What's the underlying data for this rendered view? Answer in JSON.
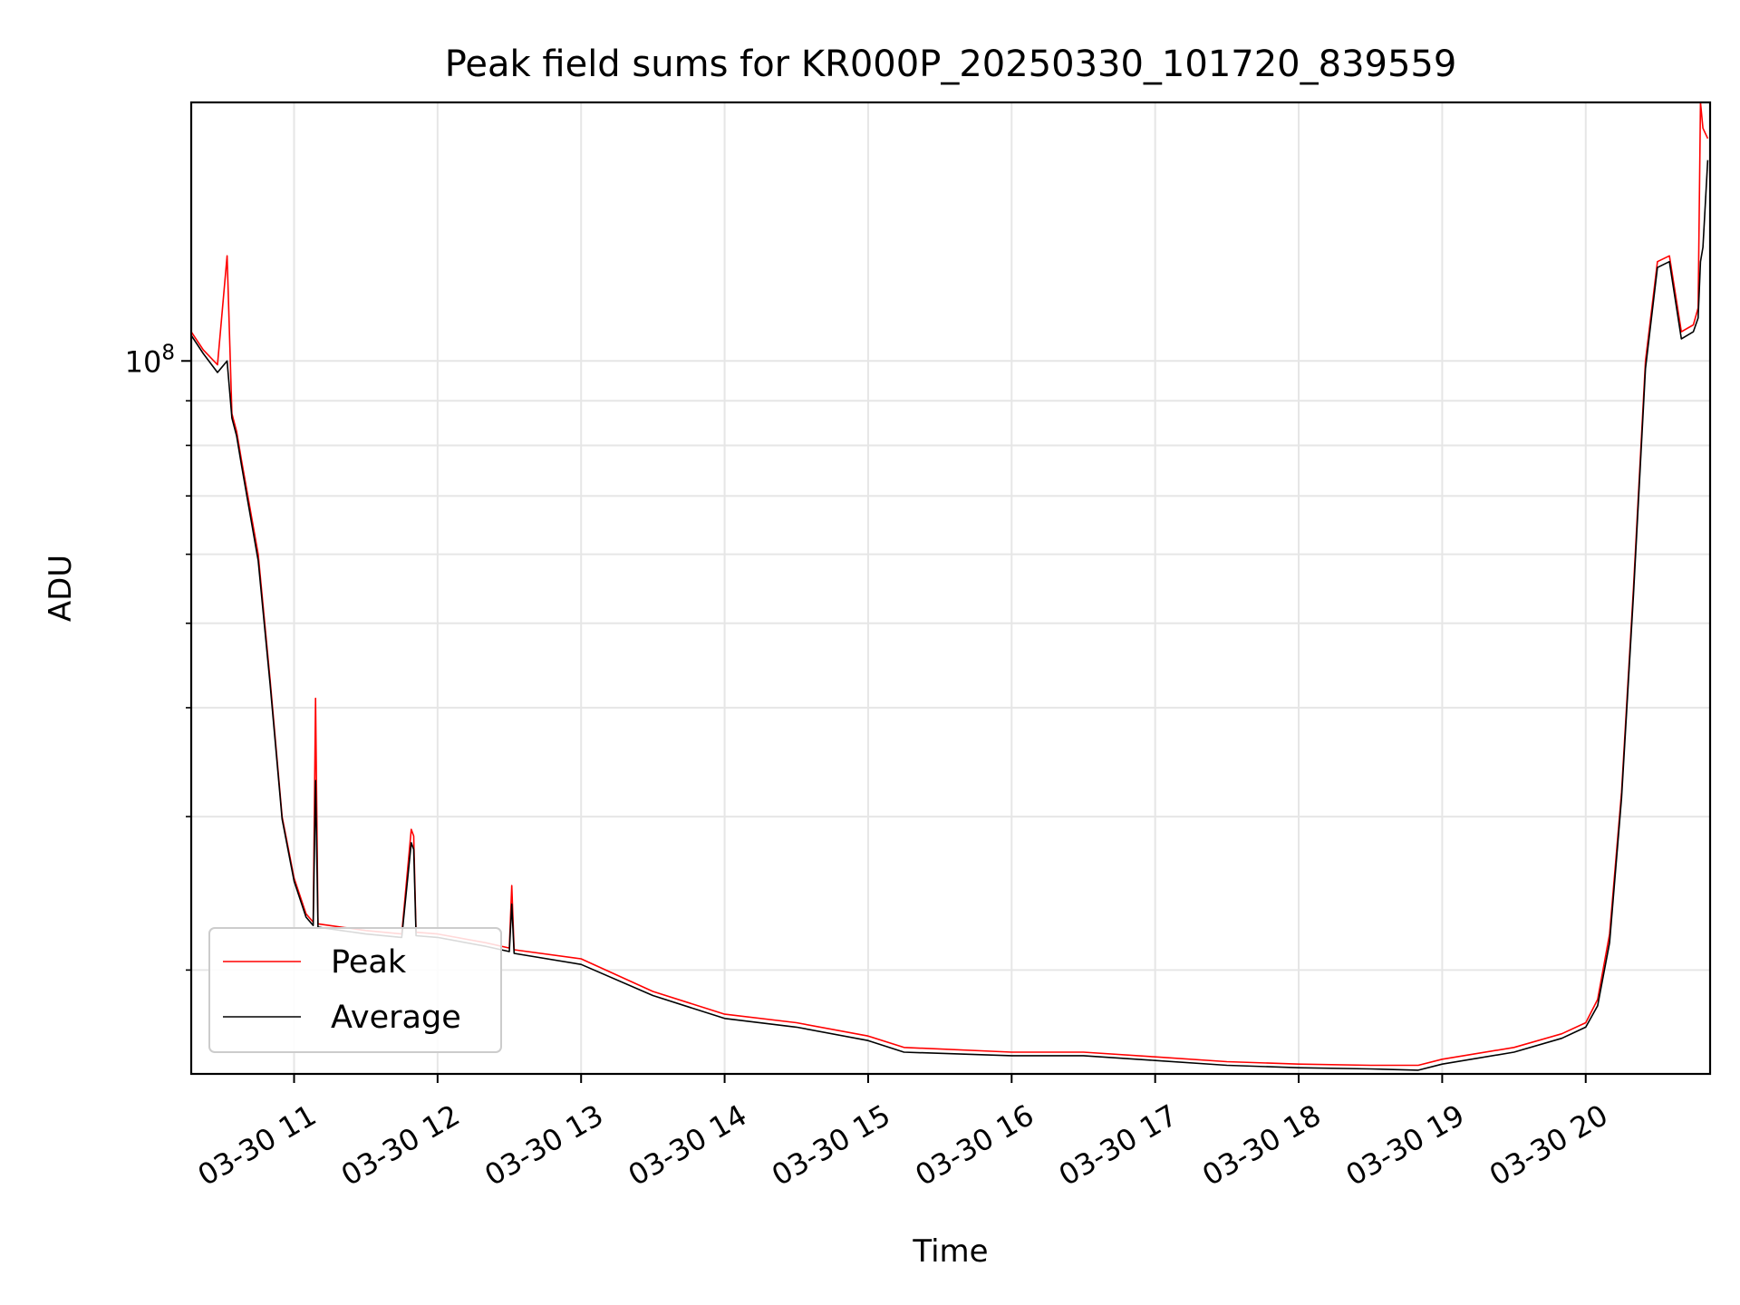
{
  "chart_data": {
    "type": "line",
    "title": "Peak field sums for KR000P_20250330_101720_839559",
    "xlabel": "Time",
    "ylabel": "ADU",
    "yscale": "log",
    "grid": true,
    "legend_position": "lower-left",
    "xlim": [
      "2025-03-30 10:17",
      "2025-03-30 20:52"
    ],
    "ylim": [
      15200000,
      198000000
    ],
    "x_ticks": [
      "03-30 11",
      "03-30 12",
      "03-30 13",
      "03-30 14",
      "03-30 15",
      "03-30 16",
      "03-30 17",
      "03-30 18",
      "03-30 19",
      "03-30 20"
    ],
    "y_tick_label": "10^8",
    "series": [
      {
        "name": "Peak",
        "color": "#ff0000",
        "x": [
          "2025-03-30 10:17",
          "2025-03-30 10:22",
          "2025-03-30 10:28",
          "2025-03-30 10:32",
          "2025-03-30 10:34",
          "2025-03-30 10:36",
          "2025-03-30 10:38",
          "2025-03-30 10:45",
          "2025-03-30 10:50",
          "2025-03-30 10:55",
          "2025-03-30 11:00",
          "2025-03-30 11:05",
          "2025-03-30 11:08",
          "2025-03-30 11:09",
          "2025-03-30 11:10",
          "2025-03-30 11:30",
          "2025-03-30 11:45",
          "2025-03-30 11:49",
          "2025-03-30 11:50",
          "2025-03-30 11:51",
          "2025-03-30 12:00",
          "2025-03-30 12:20",
          "2025-03-30 12:30",
          "2025-03-30 12:31",
          "2025-03-30 12:32",
          "2025-03-30 13:00",
          "2025-03-30 13:30",
          "2025-03-30 14:00",
          "2025-03-30 14:30",
          "2025-03-30 15:00",
          "2025-03-30 15:15",
          "2025-03-30 16:00",
          "2025-03-30 16:30",
          "2025-03-30 17:00",
          "2025-03-30 17:30",
          "2025-03-30 18:00",
          "2025-03-30 18:30",
          "2025-03-30 18:50",
          "2025-03-30 19:00",
          "2025-03-30 19:30",
          "2025-03-30 19:50",
          "2025-03-30 20:00",
          "2025-03-30 20:05",
          "2025-03-30 20:10",
          "2025-03-30 20:15",
          "2025-03-30 20:20",
          "2025-03-30 20:25",
          "2025-03-30 20:30",
          "2025-03-30 20:35",
          "2025-03-30 20:40",
          "2025-03-30 20:45",
          "2025-03-30 20:47",
          "2025-03-30 20:48",
          "2025-03-30 20:49",
          "2025-03-30 20:51"
        ],
        "y": [
          108000000,
          103000000,
          99000000,
          132000000,
          87000000,
          83000000,
          77000000,
          60000000,
          43000000,
          30000000,
          25500000,
          23200000,
          22700000,
          41000000,
          22600000,
          22200000,
          22000000,
          29000000,
          28500000,
          22100000,
          22000000,
          21500000,
          21200000,
          25000000,
          21100000,
          20600000,
          18900000,
          17800000,
          17400000,
          16800000,
          16300000,
          16100000,
          16100000,
          15900000,
          15700000,
          15600000,
          15550000,
          15550000,
          15800000,
          16300000,
          16900000,
          17400000,
          18500000,
          22000000,
          32000000,
          55000000,
          100000000,
          130000000,
          132000000,
          108000000,
          110000000,
          115000000,
          198000000,
          185000000,
          180000000
        ]
      },
      {
        "name": "Average",
        "color": "#000000",
        "x": [
          "2025-03-30 10:17",
          "2025-03-30 10:22",
          "2025-03-30 10:28",
          "2025-03-30 10:32",
          "2025-03-30 10:34",
          "2025-03-30 10:36",
          "2025-03-30 10:38",
          "2025-03-30 10:45",
          "2025-03-30 10:50",
          "2025-03-30 10:55",
          "2025-03-30 11:00",
          "2025-03-30 11:05",
          "2025-03-30 11:08",
          "2025-03-30 11:09",
          "2025-03-30 11:10",
          "2025-03-30 11:30",
          "2025-03-30 11:45",
          "2025-03-30 11:49",
          "2025-03-30 11:50",
          "2025-03-30 11:51",
          "2025-03-30 12:00",
          "2025-03-30 12:20",
          "2025-03-30 12:30",
          "2025-03-30 12:31",
          "2025-03-30 12:32",
          "2025-03-30 13:00",
          "2025-03-30 13:30",
          "2025-03-30 14:00",
          "2025-03-30 14:30",
          "2025-03-30 15:00",
          "2025-03-30 15:15",
          "2025-03-30 16:00",
          "2025-03-30 16:30",
          "2025-03-30 17:00",
          "2025-03-30 17:30",
          "2025-03-30 18:00",
          "2025-03-30 18:30",
          "2025-03-30 18:50",
          "2025-03-30 19:00",
          "2025-03-30 19:30",
          "2025-03-30 19:50",
          "2025-03-30 20:00",
          "2025-03-30 20:05",
          "2025-03-30 20:10",
          "2025-03-30 20:15",
          "2025-03-30 20:20",
          "2025-03-30 20:25",
          "2025-03-30 20:30",
          "2025-03-30 20:35",
          "2025-03-30 20:40",
          "2025-03-30 20:45",
          "2025-03-30 20:47",
          "2025-03-30 20:48",
          "2025-03-30 20:49",
          "2025-03-30 20:51"
        ],
        "y": [
          107000000,
          102000000,
          97000000,
          100000000,
          86000000,
          82000000,
          76000000,
          59000000,
          42500000,
          29800000,
          25300000,
          23000000,
          22500000,
          33000000,
          22400000,
          22000000,
          21800000,
          28000000,
          27500000,
          21900000,
          21800000,
          21300000,
          21000000,
          23800000,
          20900000,
          20300000,
          18700000,
          17600000,
          17200000,
          16600000,
          16100000,
          15950000,
          15950000,
          15750000,
          15550000,
          15450000,
          15400000,
          15350000,
          15600000,
          16100000,
          16700000,
          17200000,
          18200000,
          21500000,
          31500000,
          54000000,
          98000000,
          128000000,
          130000000,
          106000000,
          108000000,
          112000000,
          130000000,
          135000000,
          170000000
        ]
      }
    ]
  }
}
